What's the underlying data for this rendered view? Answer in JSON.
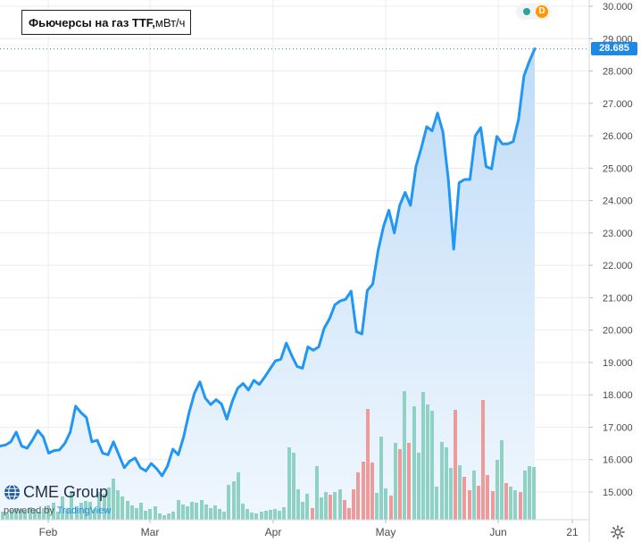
{
  "chart_data": {
    "type": "line",
    "title": "Фьючерсы на газ TTF,",
    "title_unit": " мВт/ч",
    "x_labels": [
      "Feb",
      "Mar",
      "Apr",
      "May",
      "Jun",
      "21"
    ],
    "y_ticks": [
      "30.000",
      "29.000",
      "28.000",
      "27.000",
      "26.000",
      "25.000",
      "24.000",
      "23.000",
      "22.000",
      "21.000",
      "20.000",
      "19.000",
      "18.000",
      "17.000",
      "16.000",
      "15.000"
    ],
    "ylim": [
      14.25,
      30.1
    ],
    "last_price": "28.685",
    "series": [
      {
        "values": [
          16.42,
          16.45,
          16.55,
          16.85,
          16.42,
          16.35,
          16.6,
          16.9,
          16.7,
          16.2,
          16.28,
          16.3,
          16.5,
          16.85,
          17.65,
          17.45,
          17.3,
          16.55,
          16.6,
          16.2,
          16.15,
          16.55,
          16.15,
          15.75,
          15.95,
          16.05,
          15.75,
          15.65,
          15.88,
          15.72,
          15.5,
          15.8,
          16.32,
          16.15,
          16.7,
          17.45,
          18.05,
          18.4,
          17.9,
          17.7,
          17.85,
          17.72,
          17.25,
          17.8,
          18.2,
          18.35,
          18.15,
          18.45,
          18.32,
          18.55,
          18.8,
          19.05,
          19.1,
          19.6,
          19.22,
          18.88,
          18.82,
          19.48,
          19.38,
          19.48,
          20.05,
          20.35,
          20.78,
          20.9,
          20.95,
          21.2,
          19.95,
          19.88,
          21.22,
          21.42,
          22.45,
          23.2,
          23.7,
          23.0,
          23.85,
          24.25,
          23.85,
          25.05,
          25.62,
          26.28,
          26.15,
          26.7,
          26.12,
          24.65,
          22.5,
          24.55,
          24.65,
          24.65,
          26.0,
          26.25,
          25.05,
          24.98,
          25.98,
          25.75,
          25.75,
          25.82,
          26.5,
          27.85,
          28.3,
          28.685
        ]
      }
    ],
    "volume": {
      "bars": [
        {
          "x": 3,
          "h": 9,
          "c": "g"
        },
        {
          "x": 8,
          "h": 7,
          "c": "g"
        },
        {
          "x": 13,
          "h": 11,
          "c": "g"
        },
        {
          "x": 18,
          "h": 13,
          "c": "g"
        },
        {
          "x": 23,
          "h": 12,
          "c": "g"
        },
        {
          "x": 28,
          "h": 10,
          "c": "g"
        },
        {
          "x": 34,
          "h": 14,
          "c": "g"
        },
        {
          "x": 39,
          "h": 12,
          "c": "g"
        },
        {
          "x": 44,
          "h": 9,
          "c": "g"
        },
        {
          "x": 49,
          "h": 13,
          "c": "g"
        },
        {
          "x": 54,
          "h": 16,
          "c": "g"
        },
        {
          "x": 60,
          "h": 19,
          "c": "g"
        },
        {
          "x": 65,
          "h": 9,
          "c": "g"
        },
        {
          "x": 70,
          "h": 26,
          "c": "g"
        },
        {
          "x": 75,
          "h": 12,
          "c": "g"
        },
        {
          "x": 80,
          "h": 30,
          "c": "g"
        },
        {
          "x": 86,
          "h": 14,
          "c": "g"
        },
        {
          "x": 91,
          "h": 19,
          "c": "g"
        },
        {
          "x": 96,
          "h": 21,
          "c": "g"
        },
        {
          "x": 101,
          "h": 20,
          "c": "g"
        },
        {
          "x": 106,
          "h": 12,
          "c": "g"
        },
        {
          "x": 111,
          "h": 31,
          "c": "g"
        },
        {
          "x": 117,
          "h": 29,
          "c": "g"
        },
        {
          "x": 122,
          "h": 36,
          "c": "g"
        },
        {
          "x": 127,
          "h": 46,
          "c": "g"
        },
        {
          "x": 132,
          "h": 33,
          "c": "g"
        },
        {
          "x": 137,
          "h": 26,
          "c": "g"
        },
        {
          "x": 143,
          "h": 21,
          "c": "g"
        },
        {
          "x": 148,
          "h": 16,
          "c": "g"
        },
        {
          "x": 153,
          "h": 13,
          "c": "g"
        },
        {
          "x": 158,
          "h": 19,
          "c": "g"
        },
        {
          "x": 163,
          "h": 10,
          "c": "g"
        },
        {
          "x": 168,
          "h": 12,
          "c": "g"
        },
        {
          "x": 174,
          "h": 15,
          "c": "g"
        },
        {
          "x": 179,
          "h": 7,
          "c": "g"
        },
        {
          "x": 184,
          "h": 5,
          "c": "g"
        },
        {
          "x": 189,
          "h": 7,
          "c": "g"
        },
        {
          "x": 194,
          "h": 9,
          "c": "g"
        },
        {
          "x": 200,
          "h": 22,
          "c": "g"
        },
        {
          "x": 205,
          "h": 17,
          "c": "g"
        },
        {
          "x": 210,
          "h": 15,
          "c": "g"
        },
        {
          "x": 215,
          "h": 20,
          "c": "g"
        },
        {
          "x": 220,
          "h": 19,
          "c": "g"
        },
        {
          "x": 226,
          "h": 22,
          "c": "g"
        },
        {
          "x": 231,
          "h": 17,
          "c": "g"
        },
        {
          "x": 236,
          "h": 13,
          "c": "g"
        },
        {
          "x": 241,
          "h": 16,
          "c": "g"
        },
        {
          "x": 246,
          "h": 12,
          "c": "g"
        },
        {
          "x": 251,
          "h": 9,
          "c": "g"
        },
        {
          "x": 256,
          "h": 39,
          "c": "g"
        },
        {
          "x": 262,
          "h": 43,
          "c": "g"
        },
        {
          "x": 267,
          "h": 53,
          "c": "g"
        },
        {
          "x": 272,
          "h": 18,
          "c": "g"
        },
        {
          "x": 277,
          "h": 12,
          "c": "g"
        },
        {
          "x": 282,
          "h": 8,
          "c": "g"
        },
        {
          "x": 287,
          "h": 7,
          "c": "g"
        },
        {
          "x": 293,
          "h": 9,
          "c": "g"
        },
        {
          "x": 298,
          "h": 10,
          "c": "g"
        },
        {
          "x": 303,
          "h": 11,
          "c": "g"
        },
        {
          "x": 308,
          "h": 12,
          "c": "g"
        },
        {
          "x": 313,
          "h": 10,
          "c": "g"
        },
        {
          "x": 318,
          "h": 14,
          "c": "g"
        },
        {
          "x": 324,
          "h": 81,
          "c": "g"
        },
        {
          "x": 329,
          "h": 75,
          "c": "g"
        },
        {
          "x": 334,
          "h": 34,
          "c": "g"
        },
        {
          "x": 339,
          "h": 20,
          "c": "g"
        },
        {
          "x": 344,
          "h": 29,
          "c": "g"
        },
        {
          "x": 350,
          "h": 13,
          "c": "r"
        },
        {
          "x": 355,
          "h": 60,
          "c": "g"
        },
        {
          "x": 360,
          "h": 25,
          "c": "g"
        },
        {
          "x": 365,
          "h": 31,
          "c": "g"
        },
        {
          "x": 370,
          "h": 28,
          "c": "r"
        },
        {
          "x": 375,
          "h": 31,
          "c": "g"
        },
        {
          "x": 381,
          "h": 34,
          "c": "g"
        },
        {
          "x": 386,
          "h": 22,
          "c": "r"
        },
        {
          "x": 391,
          "h": 13,
          "c": "r"
        },
        {
          "x": 396,
          "h": 34,
          "c": "r"
        },
        {
          "x": 401,
          "h": 53,
          "c": "r"
        },
        {
          "x": 407,
          "h": 65,
          "c": "r"
        },
        {
          "x": 412,
          "h": 124,
          "c": "r"
        },
        {
          "x": 417,
          "h": 64,
          "c": "r"
        },
        {
          "x": 422,
          "h": 30,
          "c": "g"
        },
        {
          "x": 427,
          "h": 93,
          "c": "g"
        },
        {
          "x": 432,
          "h": 35,
          "c": "g"
        },
        {
          "x": 438,
          "h": 27,
          "c": "r"
        },
        {
          "x": 443,
          "h": 86,
          "c": "g"
        },
        {
          "x": 448,
          "h": 79,
          "c": "r"
        },
        {
          "x": 453,
          "h": 144,
          "c": "g"
        },
        {
          "x": 458,
          "h": 86,
          "c": "r"
        },
        {
          "x": 464,
          "h": 127,
          "c": "g"
        },
        {
          "x": 469,
          "h": 75,
          "c": "g"
        },
        {
          "x": 474,
          "h": 143,
          "c": "g"
        },
        {
          "x": 479,
          "h": 129,
          "c": "g"
        },
        {
          "x": 484,
          "h": 122,
          "c": "g"
        },
        {
          "x": 489,
          "h": 37,
          "c": "g"
        },
        {
          "x": 495,
          "h": 87,
          "c": "g"
        },
        {
          "x": 500,
          "h": 81,
          "c": "g"
        },
        {
          "x": 505,
          "h": 58,
          "c": "g"
        },
        {
          "x": 510,
          "h": 123,
          "c": "r"
        },
        {
          "x": 515,
          "h": 61,
          "c": "g"
        },
        {
          "x": 520,
          "h": 48,
          "c": "r"
        },
        {
          "x": 526,
          "h": 33,
          "c": "r"
        },
        {
          "x": 531,
          "h": 55,
          "c": "g"
        },
        {
          "x": 536,
          "h": 38,
          "c": "r"
        },
        {
          "x": 541,
          "h": 134,
          "c": "r"
        },
        {
          "x": 546,
          "h": 50,
          "c": "r"
        },
        {
          "x": 552,
          "h": 32,
          "c": "r"
        },
        {
          "x": 557,
          "h": 67,
          "c": "g"
        },
        {
          "x": 562,
          "h": 89,
          "c": "g"
        },
        {
          "x": 567,
          "h": 41,
          "c": "r"
        },
        {
          "x": 572,
          "h": 37,
          "c": "g"
        },
        {
          "x": 577,
          "h": 33,
          "c": "g"
        },
        {
          "x": 583,
          "h": 31,
          "c": "r"
        },
        {
          "x": 588,
          "h": 55,
          "c": "g"
        },
        {
          "x": 593,
          "h": 60,
          "c": "g"
        },
        {
          "x": 598,
          "h": 59,
          "c": "g"
        }
      ],
      "max_h": 144
    },
    "colors": {
      "line": "#2196f3",
      "area_top": "#bfdcf7",
      "area_bottom": "#f0f7fe",
      "vol_green": "#8fd1c3",
      "vol_red": "#ec9a9a",
      "grid": "#e9ecf1",
      "axis_text": "#4a4a4a",
      "price_tag": "#1e88e5"
    },
    "grid": true
  },
  "brand": {
    "logo_text": "CME Group",
    "powered_prefix": "powered by",
    "powered_brand": "TradingView"
  },
  "header": {
    "pill_letter": "D"
  },
  "icons": {
    "settings": "gear-icon",
    "logo": "globe-icon",
    "status": "status-dot-icon"
  }
}
